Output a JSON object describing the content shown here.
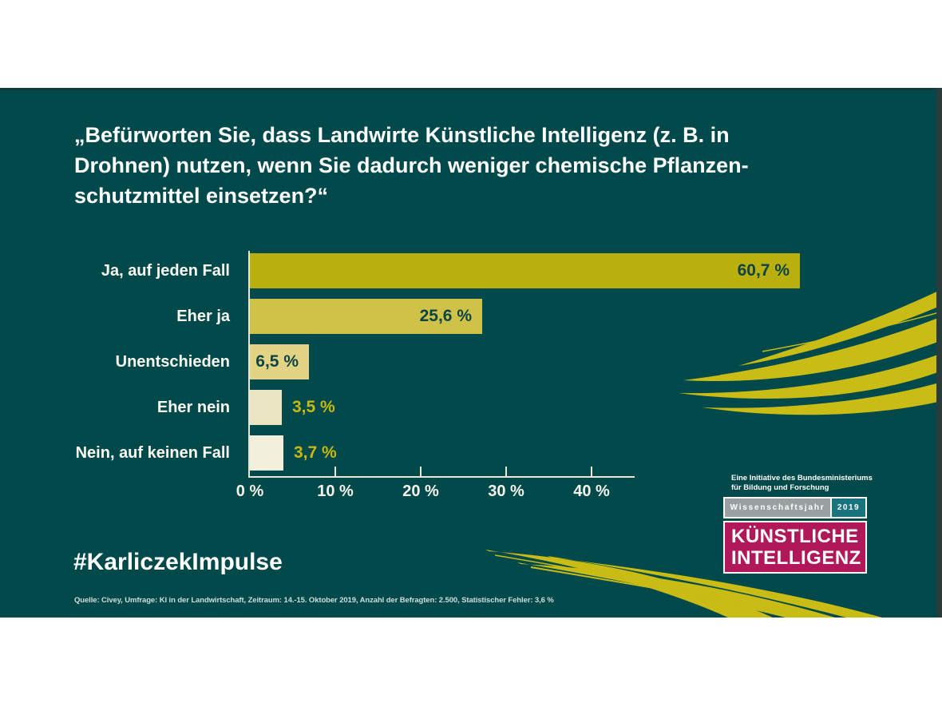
{
  "question": {
    "lines": [
      "„Befürworten Sie, dass Landwirte Künstliche Intelligenz (z. B. in",
      "Drohnen) nutzen, wenn Sie dadurch weniger chemische Pflanzen-",
      "schutzmittel einsetzen?“"
    ]
  },
  "chart_data": {
    "type": "bar",
    "orientation": "horizontal",
    "categories": [
      "Ja, auf jeden Fall",
      "Eher ja",
      "Unentschieden",
      "Eher nein",
      "Nein, auf keinen Fall"
    ],
    "values": [
      60.7,
      25.6,
      6.5,
      3.5,
      3.7
    ],
    "value_labels": [
      "60,7 %",
      "25,6 %",
      "6,5 %",
      "3,5 %",
      "3,7 %"
    ],
    "value_label_inside": [
      true,
      true,
      true,
      false,
      false
    ],
    "bar_colors": [
      "#bab00d",
      "#cfc249",
      "#e2d484",
      "#ebe5c4",
      "#f2efda"
    ],
    "x_tick_labels": [
      "0 %",
      "10 %",
      "20 %",
      "30 %",
      "40 %"
    ],
    "xlim": [
      0,
      45
    ],
    "grid": "off",
    "legend": "none",
    "title": "Befürworten Sie, dass Landwirte Künstliche Intelligenz (z. B. in Drohnen) nutzen, wenn Sie dadurch weniger chemische Pflanzenschutzmittel einsetzen?"
  },
  "hashtag": "#KarliczekImpulse",
  "source": "Quelle: Civey, Umfrage: KI in der Landwirtschaft, Zeitraum: 14.-15. Oktober 2019, Anzahl der Befragten:  2.500, Statistischer Fehler: 3,6 %",
  "logo": {
    "initiative_lines": [
      "Eine Initiative des Bundesministeriums",
      "für Bildung und Forschung"
    ],
    "wissenschaftsjahr": "Wissenschaftsjahr",
    "year": "2019",
    "title_lines": [
      "KÜNSTLICHE",
      "INTELLIGENZ"
    ]
  },
  "colors": {
    "background_teal": "#02494b",
    "accent_yellow": "#c8bc15",
    "value_text_dark": "#0d4347",
    "value_text_yellow": "#c6ba12",
    "logo_gray": "#9aa0a0",
    "logo_teal": "#18757d",
    "logo_magenta": "#b01859",
    "axis_line": "#e9e7d6"
  }
}
